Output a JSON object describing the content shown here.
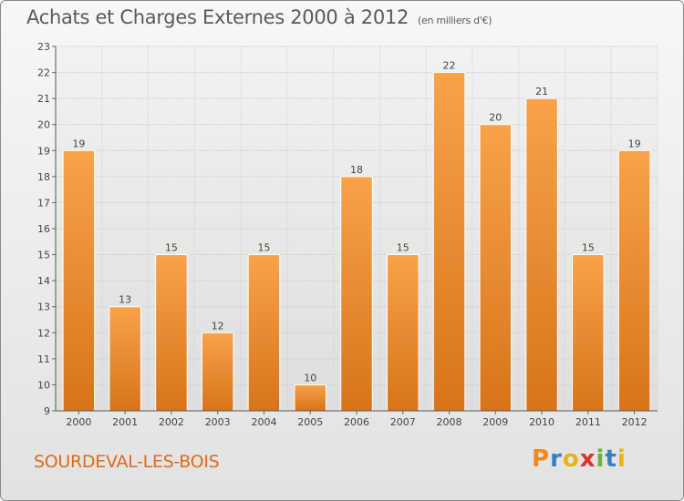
{
  "header": {
    "title": "Achats et Charges Externes 2000 à 2012",
    "unit": "(en milliers d'€)"
  },
  "footer": {
    "commune": "SOURDEVAL-LES-BOIS",
    "logo_text": "Proxiti",
    "logo_colors": [
      "#f08a1c",
      "#3a7fc1",
      "#e8b21a",
      "#d9352a",
      "#6bb33b",
      "#3a7fc1",
      "#e8b21a"
    ]
  },
  "chart_data": {
    "type": "bar",
    "categories": [
      "2000",
      "2001",
      "2002",
      "2003",
      "2004",
      "2005",
      "2006",
      "2007",
      "2008",
      "2009",
      "2010",
      "2011",
      "2012"
    ],
    "values": [
      19,
      13,
      15,
      12,
      15,
      10,
      18,
      15,
      22,
      20,
      21,
      15,
      19
    ],
    "title": "Achats et Charges Externes 2000 à 2012",
    "ylim": [
      9,
      23
    ],
    "yticks": [
      9,
      10,
      11,
      12,
      13,
      14,
      15,
      16,
      17,
      18,
      19,
      20,
      21,
      22,
      23
    ],
    "ytick_labels": [
      "9",
      "10",
      "11",
      "12",
      "13",
      "14",
      "15",
      "16",
      "17",
      "18",
      "19",
      "20",
      "21",
      "22",
      "23"
    ],
    "bar_color": "#f0902c",
    "grid": true
  }
}
